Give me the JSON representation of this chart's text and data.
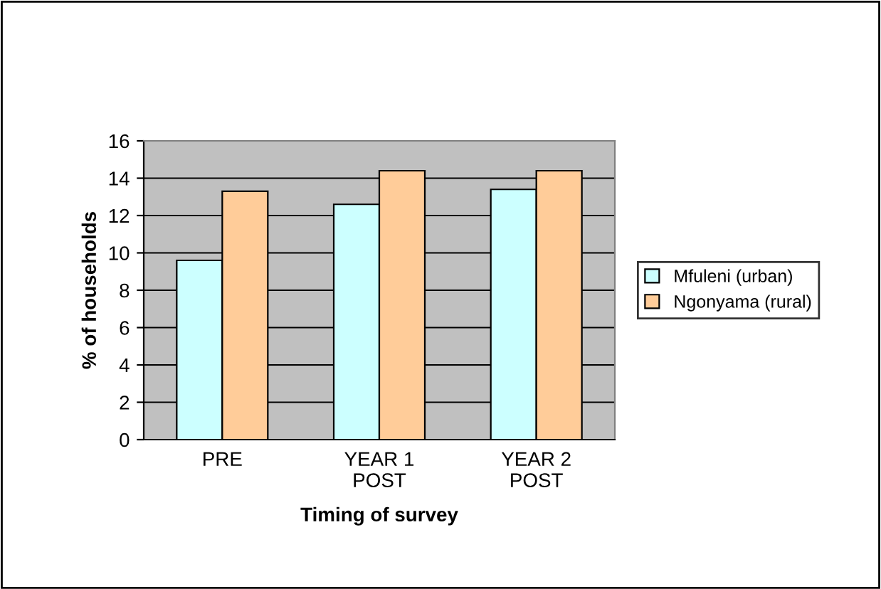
{
  "chart_data": {
    "type": "bar",
    "xlabel": "Timing of survey",
    "ylabel": "% of households",
    "categories": [
      "PRE",
      "YEAR 1\nPOST",
      "YEAR 2\nPOST"
    ],
    "series": [
      {
        "name": "Mfuleni (urban)",
        "color": "#ccffff",
        "values": [
          9.6,
          12.6,
          13.4
        ]
      },
      {
        "name": "Ngonyama (rural)",
        "color": "#ffcc99",
        "values": [
          13.3,
          14.4,
          14.4
        ]
      }
    ],
    "ylim": [
      0,
      16
    ],
    "yticks": [
      0,
      2,
      4,
      6,
      8,
      10,
      12,
      14,
      16
    ],
    "grid": "y",
    "legend": "right"
  }
}
